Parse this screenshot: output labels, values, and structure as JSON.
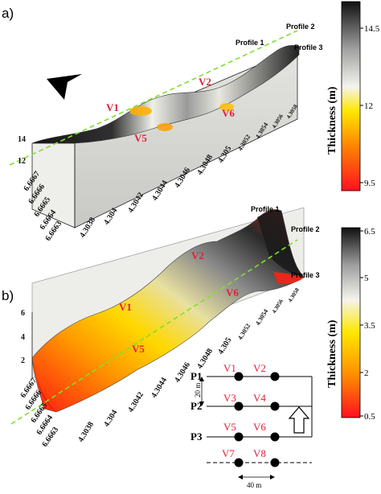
{
  "panel_a": {
    "label": "a)",
    "z_ticks": [
      "14",
      "12"
    ],
    "y_ticks": [
      "6.6667",
      "6.6666",
      "6.6665",
      "6.6664",
      "6.6663"
    ],
    "x_ticks": [
      "4.3038",
      "4.304",
      "4.3042",
      "4.3044",
      "4.3046",
      "4.3048",
      "4.305",
      "4.3052",
      "4.3054",
      "4.3056",
      "4.3058"
    ],
    "wells": [
      "V1",
      "V2",
      "V5",
      "V6"
    ],
    "profiles": [
      "Profile 1",
      "Profile 2",
      "Profile 3"
    ],
    "colorbar": {
      "title": "Thickness (m)",
      "ticks": [
        "14.5",
        "12",
        "9.5"
      ],
      "values": [
        14.5,
        12,
        9.5
      ]
    }
  },
  "panel_b": {
    "label": "b)",
    "z_ticks": [
      "6",
      "4",
      "2"
    ],
    "y_ticks": [
      "6.6667",
      "6.6666",
      "6.6665",
      "6.6664",
      "6.6663"
    ],
    "x_ticks": [
      "4.3038",
      "4.304",
      "4.3042",
      "4.3044",
      "4.3046",
      "4.3048",
      "4.305",
      "4.3052",
      "4.3054",
      "4.3056",
      "4.3058"
    ],
    "wells": [
      "V1",
      "V2",
      "V5",
      "V6"
    ],
    "profiles": [
      "Profile 1",
      "Profile 2",
      "Profile 3"
    ],
    "colorbar": {
      "title": "Thickness (m)",
      "ticks": [
        "6.5",
        "5",
        "3.5",
        "2",
        "0.5"
      ],
      "values": [
        6.5,
        5,
        3.5,
        2,
        0.5
      ]
    }
  },
  "schematic": {
    "rows": [
      {
        "label": "P1",
        "wells": [
          "V1",
          "V2"
        ]
      },
      {
        "label": "P2",
        "wells": [
          "V3",
          "V4"
        ]
      },
      {
        "label": "P3",
        "wells": [
          "V5",
          "V6"
        ]
      },
      {
        "label": "",
        "wells": [
          "V7",
          "V8"
        ]
      }
    ],
    "spacing_vertical": "20 m",
    "spacing_horizontal": "40 m"
  },
  "colors": {
    "ramp": [
      "#ff1020",
      "#ff8c00",
      "#ffe800",
      "#f4f4ee",
      "#a0a0a0",
      "#101010"
    ],
    "profile_line": "#7ee02c",
    "well_label": "#e0223a"
  }
}
